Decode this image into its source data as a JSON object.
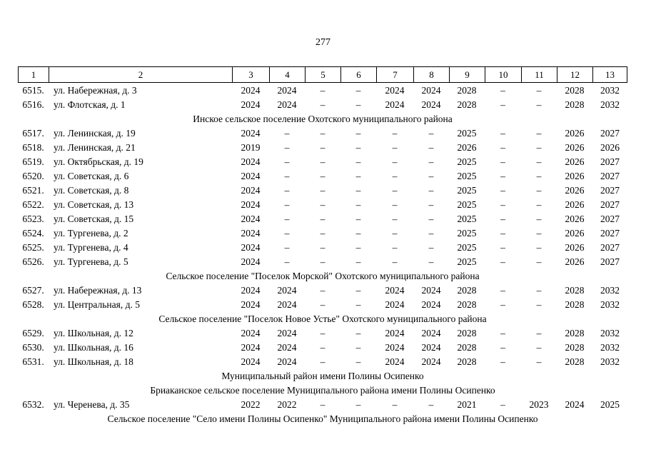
{
  "page": {
    "number": "277"
  },
  "table": {
    "column_headers": [
      "1",
      "2",
      "3",
      "4",
      "5",
      "6",
      "7",
      "8",
      "9",
      "10",
      "11",
      "12",
      "13"
    ],
    "rows": [
      {
        "type": "data",
        "num": "6515.",
        "address": "ул. Набережная, д. 3",
        "values": [
          "2024",
          "2024",
          "–",
          "–",
          "2024",
          "2024",
          "2028",
          "–",
          "–",
          "2028",
          "2032"
        ]
      },
      {
        "type": "data",
        "num": "6516.",
        "address": "ул. Флотская, д. 1",
        "values": [
          "2024",
          "2024",
          "–",
          "–",
          "2024",
          "2024",
          "2028",
          "–",
          "–",
          "2028",
          "2032"
        ]
      },
      {
        "type": "section",
        "title": "Инское сельское поселение Охотского муниципального района"
      },
      {
        "type": "data",
        "num": "6517.",
        "address": "ул. Ленинская, д. 19",
        "values": [
          "2024",
          "–",
          "–",
          "–",
          "–",
          "–",
          "2025",
          "–",
          "–",
          "2026",
          "2027"
        ]
      },
      {
        "type": "data",
        "num": "6518.",
        "address": "ул. Ленинская, д. 21",
        "values": [
          "2019",
          "–",
          "–",
          "–",
          "–",
          "–",
          "2026",
          "–",
          "–",
          "2026",
          "2026"
        ]
      },
      {
        "type": "data",
        "num": "6519.",
        "address": "ул. Октябрьская, д. 19",
        "values": [
          "2024",
          "–",
          "–",
          "–",
          "–",
          "–",
          "2025",
          "–",
          "–",
          "2026",
          "2027"
        ]
      },
      {
        "type": "data",
        "num": "6520.",
        "address": "ул. Советская, д. 6",
        "values": [
          "2024",
          "–",
          "–",
          "–",
          "–",
          "–",
          "2025",
          "–",
          "–",
          "2026",
          "2027"
        ]
      },
      {
        "type": "data",
        "num": "6521.",
        "address": "ул. Советская, д. 8",
        "values": [
          "2024",
          "–",
          "–",
          "–",
          "–",
          "–",
          "2025",
          "–",
          "–",
          "2026",
          "2027"
        ]
      },
      {
        "type": "data",
        "num": "6522.",
        "address": "ул. Советская, д. 13",
        "values": [
          "2024",
          "–",
          "–",
          "–",
          "–",
          "–",
          "2025",
          "–",
          "–",
          "2026",
          "2027"
        ]
      },
      {
        "type": "data",
        "num": "6523.",
        "address": "ул. Советская, д. 15",
        "values": [
          "2024",
          "–",
          "–",
          "–",
          "–",
          "–",
          "2025",
          "–",
          "–",
          "2026",
          "2027"
        ]
      },
      {
        "type": "data",
        "num": "6524.",
        "address": "ул. Тургенева, д. 2",
        "values": [
          "2024",
          "–",
          "–",
          "–",
          "–",
          "–",
          "2025",
          "–",
          "–",
          "2026",
          "2027"
        ]
      },
      {
        "type": "data",
        "num": "6525.",
        "address": "ул. Тургенева, д. 4",
        "values": [
          "2024",
          "–",
          "–",
          "–",
          "–",
          "–",
          "2025",
          "–",
          "–",
          "2026",
          "2027"
        ]
      },
      {
        "type": "data",
        "num": "6526.",
        "address": "ул. Тургенева, д. 5",
        "values": [
          "2024",
          "–",
          "–",
          "–",
          "–",
          "–",
          "2025",
          "–",
          "–",
          "2026",
          "2027"
        ]
      },
      {
        "type": "section",
        "title": "Сельское поселение \"Поселок Морской\" Охотского муниципального района"
      },
      {
        "type": "data",
        "num": "6527.",
        "address": "ул. Набережная, д. 13",
        "values": [
          "2024",
          "2024",
          "–",
          "–",
          "2024",
          "2024",
          "2028",
          "–",
          "–",
          "2028",
          "2032"
        ]
      },
      {
        "type": "data",
        "num": "6528.",
        "address": "ул. Центральная, д. 5",
        "values": [
          "2024",
          "2024",
          "–",
          "–",
          "2024",
          "2024",
          "2028",
          "–",
          "–",
          "2028",
          "2032"
        ]
      },
      {
        "type": "section",
        "title": "Сельское поселение \"Поселок Новое Устье\" Охотского муниципального района"
      },
      {
        "type": "data",
        "num": "6529.",
        "address": "ул. Школьная, д. 12",
        "values": [
          "2024",
          "2024",
          "–",
          "–",
          "2024",
          "2024",
          "2028",
          "–",
          "–",
          "2028",
          "2032"
        ]
      },
      {
        "type": "data",
        "num": "6530.",
        "address": "ул. Школьная, д. 16",
        "values": [
          "2024",
          "2024",
          "–",
          "–",
          "2024",
          "2024",
          "2028",
          "–",
          "–",
          "2028",
          "2032"
        ]
      },
      {
        "type": "data",
        "num": "6531.",
        "address": "ул. Школьная, д. 18",
        "values": [
          "2024",
          "2024",
          "–",
          "–",
          "2024",
          "2024",
          "2028",
          "–",
          "–",
          "2028",
          "2032"
        ]
      },
      {
        "type": "section",
        "title": "Муниципальный район имени Полины Осипенко"
      },
      {
        "type": "section",
        "title": "Бриаканское сельское поселение Муниципального района имени Полины Осипенко"
      },
      {
        "type": "data",
        "num": "6532.",
        "address": "ул. Черенева, д. 35",
        "values": [
          "2022",
          "2022",
          "–",
          "–",
          "–",
          "–",
          "2021",
          "–",
          "2023",
          "2024",
          "2025"
        ]
      },
      {
        "type": "section",
        "title": "Сельское поселение \"Село имени Полины Осипенко\" Муниципального района имени Полины Осипенко"
      }
    ]
  }
}
